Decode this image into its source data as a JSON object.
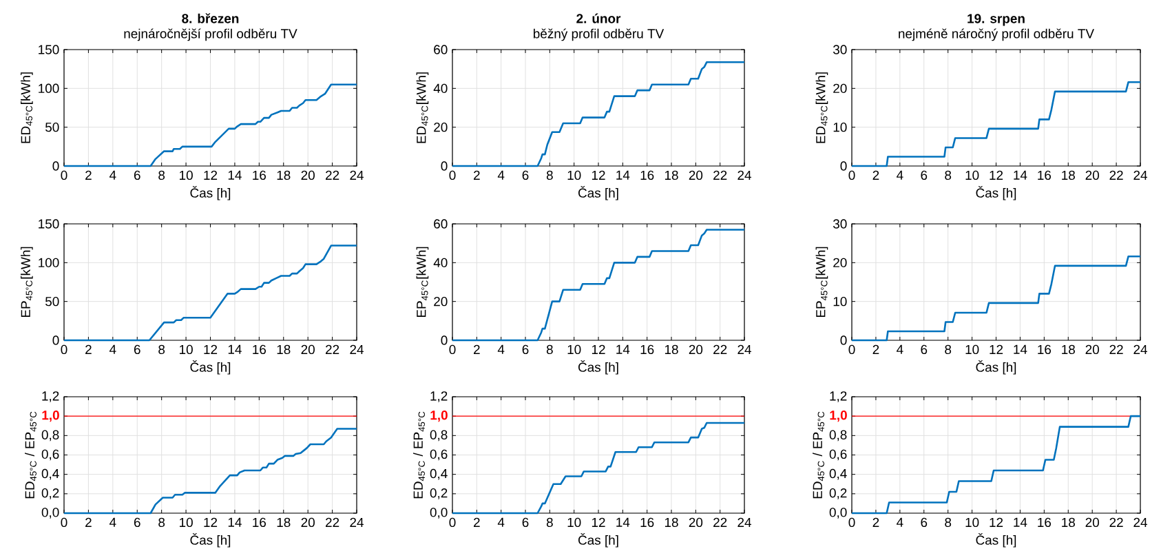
{
  "chart_data": [
    {
      "type": "line",
      "title": "8. březen",
      "subtitle": "nejnáročnější profil odběru TV",
      "xlabel": "Čas [h]",
      "ylabel": "ED$_{45°C}$[kWh]",
      "xlim": [
        0,
        24
      ],
      "xticks": [
        0,
        2,
        4,
        6,
        8,
        10,
        12,
        14,
        16,
        18,
        20,
        22,
        24
      ],
      "ylim": [
        0,
        150
      ],
      "yticks": [
        0,
        50,
        100,
        150
      ],
      "grid": true,
      "color": "#0072bd",
      "x": [
        0,
        7.1,
        7.5,
        8.2,
        8.9,
        9.0,
        9.5,
        9.7,
        12.1,
        12.4,
        13.5,
        14.0,
        14.2,
        14.5,
        15.7,
        15.9,
        16.1,
        16.4,
        16.8,
        17.0,
        17.5,
        17.8,
        18.5,
        18.7,
        19.1,
        19.3,
        19.6,
        19.8,
        20.7,
        21.0,
        21.4,
        21.9,
        24
      ],
      "values": [
        0,
        0,
        9,
        19,
        19,
        22,
        22,
        25,
        25,
        31,
        48,
        48,
        51,
        54,
        54,
        57,
        57,
        62,
        62,
        66,
        69,
        71,
        71,
        75,
        75,
        78,
        81,
        85,
        85,
        89,
        93,
        105,
        105
      ]
    },
    {
      "type": "line",
      "title": "2. únor",
      "subtitle": "běžný profil odběru TV",
      "xlabel": "Čas [h]",
      "ylabel": "ED$_{45°C}$[kWh]",
      "xlim": [
        0,
        24
      ],
      "xticks": [
        0,
        2,
        4,
        6,
        8,
        10,
        12,
        14,
        16,
        18,
        20,
        22,
        24
      ],
      "ylim": [
        0,
        60
      ],
      "yticks": [
        0,
        20,
        40,
        60
      ],
      "grid": true,
      "color": "#0072bd",
      "x": [
        0,
        7.0,
        7.3,
        7.4,
        7.6,
        7.8,
        8.2,
        8.8,
        9.1,
        10.5,
        10.7,
        12.5,
        12.7,
        12.9,
        13.3,
        15.0,
        15.2,
        16.2,
        16.4,
        19.4,
        19.6,
        20.2,
        20.5,
        20.7,
        20.9,
        24
      ],
      "values": [
        0,
        0,
        4,
        6,
        6,
        11,
        17.5,
        17.5,
        22,
        22,
        25,
        25,
        28,
        28,
        36,
        36,
        39,
        39,
        42,
        42,
        45,
        45,
        50,
        51,
        53.5,
        53.5
      ]
    },
    {
      "type": "line",
      "title": "19. srpen",
      "subtitle": "nejméně náročný profil odběru TV",
      "xlabel": "Čas [h]",
      "ylabel": "ED$_{45°C}$[kWh]",
      "xlim": [
        0,
        24
      ],
      "xticks": [
        0,
        2,
        4,
        6,
        8,
        10,
        12,
        14,
        16,
        18,
        20,
        22,
        24
      ],
      "ylim": [
        0,
        30
      ],
      "yticks": [
        0,
        10,
        20,
        30
      ],
      "grid": true,
      "color": "#0072bd",
      "x": [
        0,
        2.9,
        3.0,
        7.7,
        7.8,
        8.4,
        8.6,
        11.2,
        11.4,
        15.5,
        15.6,
        16.4,
        16.6,
        16.9,
        22.8,
        23.0,
        24
      ],
      "values": [
        0,
        0,
        2.4,
        2.4,
        4.8,
        4.8,
        7.2,
        7.2,
        9.6,
        9.6,
        12,
        12,
        14.5,
        19.2,
        19.2,
        21.6,
        21.6
      ]
    },
    {
      "type": "line",
      "xlabel": "Čas [h]",
      "ylabel": "EP$_{45°C}$[kWh]",
      "xlim": [
        0,
        24
      ],
      "xticks": [
        0,
        2,
        4,
        6,
        8,
        10,
        12,
        14,
        16,
        18,
        20,
        22,
        24
      ],
      "ylim": [
        0,
        150
      ],
      "yticks": [
        0,
        50,
        100,
        150
      ],
      "grid": true,
      "color": "#0072bd",
      "x": [
        0,
        7.0,
        8.2,
        9.0,
        9.2,
        9.6,
        9.8,
        12.0,
        13.4,
        14.0,
        14.2,
        14.5,
        15.7,
        16.0,
        16.2,
        16.4,
        16.8,
        17.0,
        17.4,
        17.8,
        18.5,
        18.7,
        19.1,
        19.3,
        19.6,
        19.8,
        20.7,
        21.0,
        21.3,
        21.9,
        24
      ],
      "values": [
        0,
        0,
        23,
        23,
        26,
        26,
        29,
        29,
        60,
        60,
        62,
        66,
        66,
        69,
        69,
        74,
        74,
        77,
        80,
        83,
        83,
        86,
        86,
        89,
        93,
        98,
        98,
        101,
        105,
        122,
        122
      ]
    },
    {
      "type": "line",
      "xlabel": "Čas [h]",
      "ylabel": "EP$_{45°C}$[kWh]",
      "xlim": [
        0,
        24
      ],
      "xticks": [
        0,
        2,
        4,
        6,
        8,
        10,
        12,
        14,
        16,
        18,
        20,
        22,
        24
      ],
      "ylim": [
        0,
        60
      ],
      "yticks": [
        0,
        20,
        40,
        60
      ],
      "grid": true,
      "color": "#0072bd",
      "x": [
        0,
        7.0,
        7.3,
        7.4,
        7.6,
        8.2,
        8.8,
        9.1,
        10.5,
        10.7,
        12.5,
        12.7,
        12.9,
        13.3,
        15.0,
        15.2,
        16.2,
        16.4,
        19.4,
        19.6,
        20.2,
        20.5,
        20.7,
        20.9,
        24
      ],
      "values": [
        0,
        0,
        4,
        6,
        6,
        20,
        20,
        26,
        26,
        29,
        29,
        32,
        32,
        40,
        40,
        43,
        43,
        46,
        46,
        49,
        49,
        54,
        55,
        57,
        57
      ]
    },
    {
      "type": "line",
      "xlabel": "Čas [h]",
      "ylabel": "EP$_{45°C}$[kWh]",
      "xlim": [
        0,
        24
      ],
      "xticks": [
        0,
        2,
        4,
        6,
        8,
        10,
        12,
        14,
        16,
        18,
        20,
        22,
        24
      ],
      "ylim": [
        0,
        30
      ],
      "yticks": [
        0,
        10,
        20,
        30
      ],
      "grid": true,
      "color": "#0072bd",
      "x": [
        0,
        2.9,
        3.0,
        7.7,
        7.8,
        8.4,
        8.6,
        11.2,
        11.4,
        15.5,
        15.6,
        16.4,
        16.6,
        16.9,
        22.8,
        23.0,
        24
      ],
      "values": [
        0,
        0,
        2.3,
        2.3,
        4.7,
        4.7,
        7.1,
        7.1,
        9.6,
        9.6,
        12,
        12,
        14.5,
        19.2,
        19.2,
        21.6,
        21.6
      ]
    },
    {
      "type": "line",
      "xlabel": "Čas [h]",
      "ylabel": "ED$_{45°C}$ / EP$_{45°C}$",
      "xlim": [
        0,
        24
      ],
      "xticks": [
        0,
        2,
        4,
        6,
        8,
        10,
        12,
        14,
        16,
        18,
        20,
        22,
        24
      ],
      "ylim": [
        0,
        1.2
      ],
      "yticks": [
        {
          "value": 0,
          "label": "0,0"
        },
        {
          "value": 0.2,
          "label": "0,2"
        },
        {
          "value": 0.4,
          "label": "0,4"
        },
        {
          "value": 0.6,
          "label": "0,6"
        },
        {
          "value": 0.8,
          "label": "0,8"
        },
        {
          "value": 1.0,
          "label": null
        },
        {
          "value": 1.2,
          "label": "1,2"
        }
      ],
      "grid": true,
      "color": "#0072bd",
      "ref_lines": [
        {
          "axis": "y",
          "value": 1.0,
          "label": "1,0",
          "color": "#ff0000"
        }
      ],
      "x": [
        0,
        7.1,
        7.5,
        8.1,
        8.9,
        9.1,
        9.7,
        9.9,
        12.4,
        12.8,
        13.6,
        14.2,
        14.4,
        14.8,
        16.1,
        16.3,
        16.6,
        16.8,
        17.2,
        17.5,
        17.9,
        18.1,
        18.8,
        19.0,
        19.4,
        19.6,
        19.9,
        20.2,
        21.3,
        21.5,
        21.9,
        22.4,
        24
      ],
      "values": [
        0,
        0,
        0.09,
        0.16,
        0.16,
        0.19,
        0.19,
        0.21,
        0.21,
        0.28,
        0.39,
        0.39,
        0.42,
        0.44,
        0.44,
        0.47,
        0.47,
        0.51,
        0.51,
        0.55,
        0.57,
        0.59,
        0.59,
        0.61,
        0.62,
        0.64,
        0.67,
        0.71,
        0.71,
        0.74,
        0.78,
        0.87,
        0.87
      ]
    },
    {
      "type": "line",
      "xlabel": "Čas [h]",
      "ylabel": "ED$_{45°C}$ / EP$_{45°C}$",
      "xlim": [
        0,
        24
      ],
      "xticks": [
        0,
        2,
        4,
        6,
        8,
        10,
        12,
        14,
        16,
        18,
        20,
        22,
        24
      ],
      "ylim": [
        0,
        1.2
      ],
      "yticks": [
        {
          "value": 0,
          "label": "0,0"
        },
        {
          "value": 0.2,
          "label": "0,2"
        },
        {
          "value": 0.4,
          "label": "0,4"
        },
        {
          "value": 0.6,
          "label": "0,6"
        },
        {
          "value": 0.8,
          "label": "0,8"
        },
        {
          "value": 1.0,
          "label": null
        },
        {
          "value": 1.2,
          "label": "1,2"
        }
      ],
      "grid": true,
      "color": "#0072bd",
      "ref_lines": [
        {
          "axis": "y",
          "value": 1.0,
          "label": "1,0",
          "color": "#ff0000"
        }
      ],
      "x": [
        0,
        7.0,
        7.3,
        7.4,
        7.6,
        8.3,
        8.9,
        9.3,
        10.6,
        10.8,
        12.6,
        12.8,
        13.0,
        13.4,
        15.1,
        15.3,
        16.4,
        16.6,
        19.4,
        19.6,
        20.2,
        20.5,
        20.7,
        20.9,
        24
      ],
      "values": [
        0,
        0,
        0.07,
        0.1,
        0.1,
        0.3,
        0.3,
        0.38,
        0.38,
        0.43,
        0.43,
        0.48,
        0.48,
        0.63,
        0.63,
        0.68,
        0.68,
        0.73,
        0.73,
        0.78,
        0.78,
        0.87,
        0.88,
        0.93,
        0.93
      ]
    },
    {
      "type": "line",
      "xlabel": "Čas [h]",
      "ylabel": "ED$_{45°C}$ / EP$_{45°C}$",
      "xlim": [
        0,
        24
      ],
      "xticks": [
        0,
        2,
        4,
        6,
        8,
        10,
        12,
        14,
        16,
        18,
        20,
        22,
        24
      ],
      "ylim": [
        0,
        1.2
      ],
      "yticks": [
        {
          "value": 0,
          "label": "0,0"
        },
        {
          "value": 0.2,
          "label": "0,2"
        },
        {
          "value": 0.4,
          "label": "0,4"
        },
        {
          "value": 0.6,
          "label": "0,6"
        },
        {
          "value": 0.8,
          "label": "0,8"
        },
        {
          "value": 1.0,
          "label": null
        },
        {
          "value": 1.2,
          "label": "1,2"
        }
      ],
      "grid": true,
      "color": "#0072bd",
      "ref_lines": [
        {
          "axis": "y",
          "value": 1.0,
          "label": "1,0",
          "color": "#ff0000"
        }
      ],
      "x": [
        0,
        2.9,
        3.1,
        7.9,
        8.1,
        8.7,
        8.9,
        11.6,
        11.8,
        15.9,
        16.1,
        16.8,
        17.0,
        17.3,
        23.0,
        23.2,
        24
      ],
      "values": [
        0,
        0,
        0.11,
        0.11,
        0.22,
        0.22,
        0.33,
        0.33,
        0.44,
        0.44,
        0.55,
        0.55,
        0.67,
        0.89,
        0.89,
        1.0,
        1.0
      ]
    }
  ]
}
